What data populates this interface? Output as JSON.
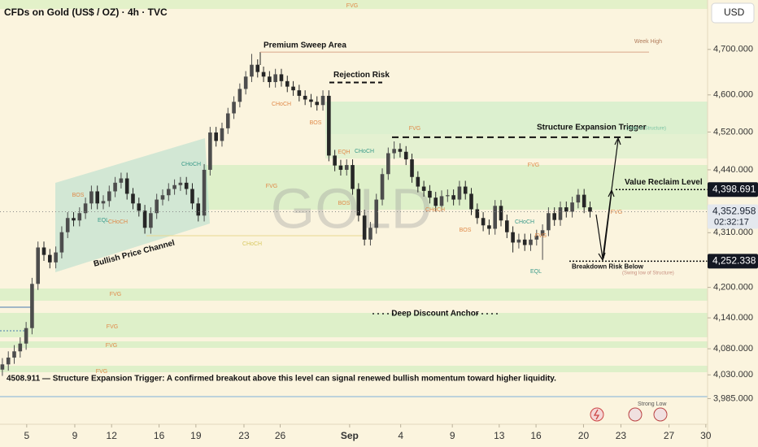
{
  "chart_data": {
    "type": "candlestick",
    "title": "CFDs on Gold (US$ / OZ) · 4h · TVC",
    "currency": "USD",
    "watermark": "GOLD",
    "log_scale": true,
    "up_color": "#4d4d4d",
    "down_color": "#262626",
    "xlim": [
      -0.4,
      118.8
    ],
    "xticks": [
      {
        "value": 4.1,
        "label": "5"
      },
      {
        "value": 12.2,
        "label": "9"
      },
      {
        "value": 18.4,
        "label": "12"
      },
      {
        "value": 26.4,
        "label": "16"
      },
      {
        "value": 32.6,
        "label": "19"
      },
      {
        "value": 40.7,
        "label": "23"
      },
      {
        "value": 46.8,
        "label": "26"
      },
      {
        "value": 58.5,
        "label": "Sep"
      },
      {
        "value": 67.1,
        "label": "4"
      },
      {
        "value": 75.8,
        "label": "9"
      },
      {
        "value": 83.7,
        "label": "13"
      },
      {
        "value": 89.9,
        "label": "16"
      },
      {
        "value": 97.9,
        "label": "20"
      },
      {
        "value": 104.2,
        "label": "23"
      },
      {
        "value": 112.3,
        "label": "27"
      },
      {
        "value": 118.5,
        "label": "30"
      }
    ],
    "ylim": [
      3937,
      4811
    ],
    "yticks": [
      {
        "value": 3985,
        "label": "3,985.000"
      },
      {
        "value": 4030,
        "label": "4,030.000"
      },
      {
        "value": 4080,
        "label": "4,080.000"
      },
      {
        "value": 4140,
        "label": "4,140.000"
      },
      {
        "value": 4200,
        "label": "4,200.000"
      },
      {
        "value": 4310,
        "label": "4,310.000"
      },
      {
        "value": 4440,
        "label": "4,440.000"
      },
      {
        "value": 4520,
        "label": "4,520.000"
      },
      {
        "value": 4600,
        "label": "4,600.000"
      },
      {
        "value": 4700,
        "label": "4,700.000"
      }
    ],
    "open": [
      4040,
      4050,
      4063,
      4075,
      4090,
      4120,
      4207,
      4280,
      4265,
      4250,
      4270,
      4311,
      4340,
      4335,
      4350,
      4370,
      4395,
      4370,
      4375,
      4395,
      4413,
      4422,
      4390,
      4370,
      4355,
      4320,
      4350,
      4378,
      4387,
      4400,
      4408,
      4413,
      4400,
      4370,
      4345,
      4440,
      4519,
      4501,
      4528,
      4560,
      4585,
      4613,
      4640,
      4666,
      4650,
      4640,
      4628,
      4645,
      4630,
      4618,
      4610,
      4598,
      4590,
      4585,
      4578,
      4598,
      4470,
      4449,
      4440,
      4450,
      4400,
      4345,
      4296,
      4320,
      4378,
      4431,
      4475,
      4484,
      4478,
      4462,
      4425,
      4405,
      4396,
      4382,
      4365,
      4385,
      4387,
      4378,
      4405,
      4390,
      4358,
      4340,
      4325,
      4318,
      4365,
      4335,
      4311,
      4290,
      4296,
      4285,
      4296,
      4304,
      4315,
      4350,
      4336,
      4362,
      4353,
      4372,
      4388,
      4362
    ],
    "high": [
      4062,
      4075,
      4087,
      4102,
      4132,
      4219,
      4292,
      4292,
      4277,
      4282,
      4323,
      4352,
      4352,
      4362,
      4382,
      4407,
      4407,
      4387,
      4407,
      4425,
      4434,
      4434,
      4402,
      4382,
      4367,
      4362,
      4390,
      4399,
      4412,
      4420,
      4425,
      4425,
      4412,
      4382,
      4452,
      4531,
      4531,
      4540,
      4572,
      4597,
      4625,
      4652,
      4690,
      4678,
      4662,
      4652,
      4657,
      4657,
      4642,
      4630,
      4622,
      4610,
      4602,
      4597,
      4610,
      4610,
      4482,
      4461,
      4462,
      4462,
      4412,
      4357,
      4332,
      4390,
      4443,
      4487,
      4500,
      4496,
      4490,
      4474,
      4437,
      4417,
      4408,
      4394,
      4397,
      4399,
      4399,
      4417,
      4417,
      4402,
      4370,
      4352,
      4337,
      4377,
      4377,
      4347,
      4323,
      4308,
      4308,
      4308,
      4316,
      4327,
      4362,
      4362,
      4374,
      4374,
      4384,
      4400,
      4400,
      4374
    ],
    "low": [
      4028,
      4038,
      4051,
      4063,
      4078,
      4108,
      4195,
      4253,
      4238,
      4238,
      4258,
      4299,
      4323,
      4323,
      4338,
      4358,
      4358,
      4358,
      4363,
      4383,
      4401,
      4378,
      4358,
      4343,
      4308,
      4308,
      4338,
      4366,
      4375,
      4388,
      4396,
      4388,
      4358,
      4333,
      4333,
      4428,
      4489,
      4489,
      4516,
      4548,
      4573,
      4601,
      4628,
      4638,
      4628,
      4616,
      4616,
      4618,
      4606,
      4598,
      4586,
      4578,
      4573,
      4566,
      4566,
      4458,
      4437,
      4428,
      4428,
      4388,
      4333,
      4284,
      4284,
      4308,
      4366,
      4419,
      4463,
      4466,
      4450,
      4413,
      4393,
      4384,
      4370,
      4353,
      4353,
      4373,
      4366,
      4366,
      4378,
      4346,
      4328,
      4313,
      4306,
      4306,
      4323,
      4299,
      4270,
      4278,
      4273,
      4273,
      4284,
      4255,
      4303,
      4324,
      4324,
      4341,
      4341,
      4360,
      4350,
      4341
    ],
    "close": [
      4050,
      4063,
      4075,
      4090,
      4120,
      4207,
      4280,
      4265,
      4250,
      4270,
      4311,
      4340,
      4335,
      4350,
      4370,
      4395,
      4370,
      4375,
      4395,
      4413,
      4422,
      4390,
      4370,
      4355,
      4320,
      4350,
      4378,
      4387,
      4400,
      4408,
      4413,
      4400,
      4370,
      4345,
      4440,
      4519,
      4501,
      4528,
      4560,
      4585,
      4613,
      4640,
      4666,
      4650,
      4640,
      4628,
      4645,
      4630,
      4618,
      4610,
      4598,
      4590,
      4585,
      4578,
      4598,
      4470,
      4449,
      4440,
      4450,
      4400,
      4345,
      4296,
      4320,
      4378,
      4431,
      4475,
      4484,
      4478,
      4462,
      4425,
      4405,
      4396,
      4382,
      4365,
      4385,
      4387,
      4378,
      4405,
      4390,
      4358,
      4340,
      4325,
      4318,
      4365,
      4335,
      4311,
      4290,
      4296,
      4285,
      4296,
      4304,
      4315,
      4350,
      4336,
      4362,
      4353,
      4372,
      4388,
      4362,
      4353
    ],
    "levels": [
      {
        "label": "Week High",
        "value": 4694
      },
      {
        "label": "Rejection Risk",
        "value": 4627
      },
      {
        "label": "Structure Expansion Trigger",
        "value": 4508.911
      },
      {
        "label": "Value Reclaim Level",
        "value": 4398.691
      },
      {
        "label": "Breakdown Risk Below",
        "value": 4252.338
      }
    ],
    "price_tags": [
      {
        "value": 4398.691,
        "label": "4,398.691"
      },
      {
        "value": 4352.958,
        "label": "4,352.958",
        "countdown": "02:32:17"
      },
      {
        "value": 4252.338,
        "label": "4,252.338"
      }
    ],
    "annotations": [
      "Premium Sweep Area",
      "Bullish Price Channel",
      "Deep Discount Anchor",
      "(High of Structure)",
      "(Swing low of Structure)",
      "Strong Low",
      "4508.911 — Structure Expansion Trigger: A confirmed breakout above this level can signal renewed bullish momentum toward higher liquidity."
    ],
    "markers": [
      "FVG",
      "FVG",
      "CHoCH",
      "BOS",
      "EQH",
      "CHoCH",
      "FVG",
      "FVG",
      "BOS",
      "CHoCH",
      "BOS",
      "CHoCH",
      "EQL",
      "FVG",
      "FVG",
      "BOS",
      "EQL",
      "CHoCH",
      "CHoCH",
      "CHoCH",
      "FVG",
      "FVG",
      "FVG",
      "FVG"
    ]
  }
}
